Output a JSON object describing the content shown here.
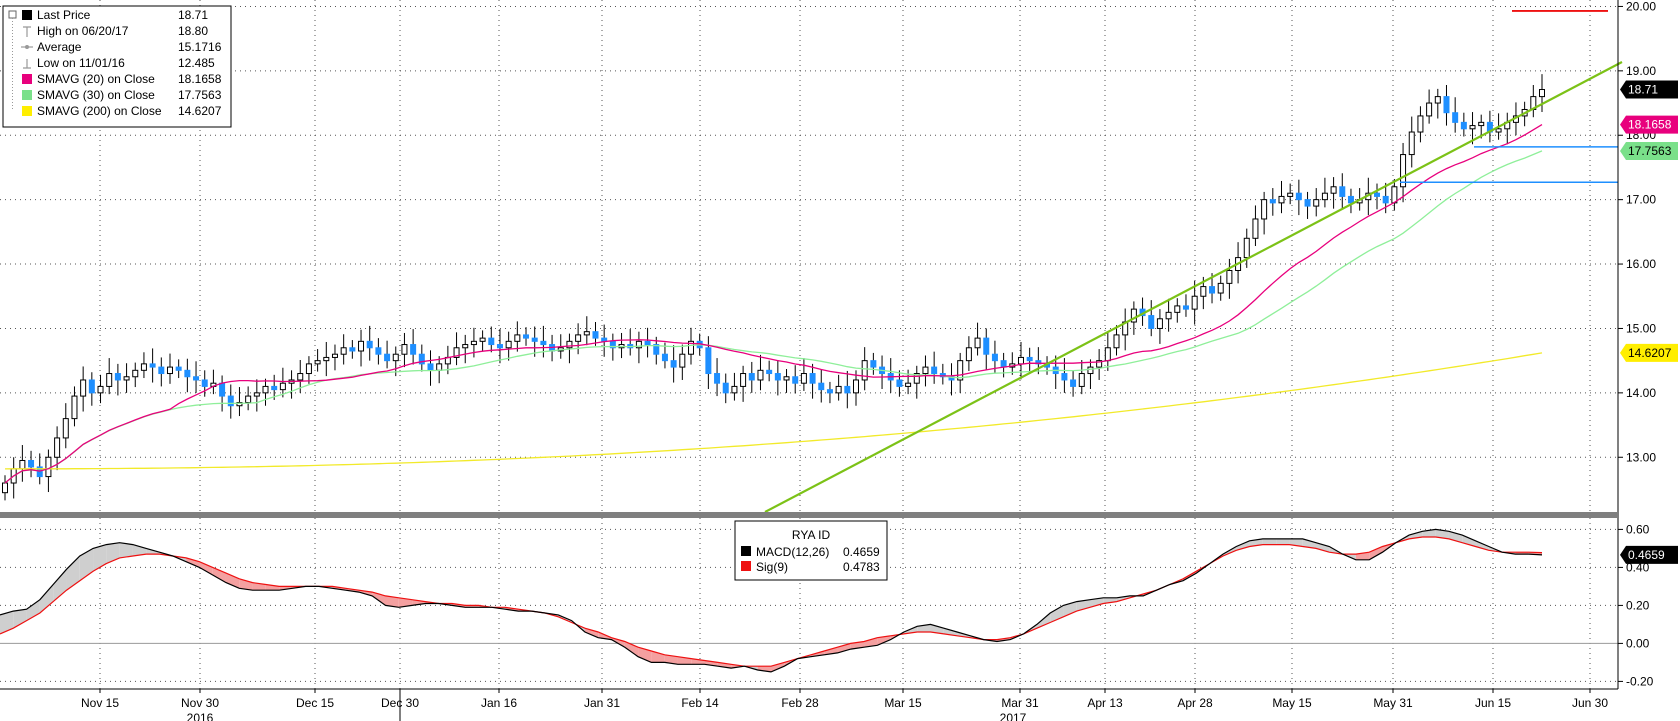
{
  "chart_data": [
    {
      "type": "candlestick",
      "panel": "price",
      "ylim": [
        12.15,
        20.1
      ],
      "yticks": [
        "20.00",
        "19.00",
        "18.00",
        "17.00",
        "16.00",
        "15.00",
        "14.00",
        "13.00"
      ],
      "legend": [
        {
          "label": "Last Price",
          "value": "18.71",
          "marker": "square",
          "color": "#000000"
        },
        {
          "label": "High on 06/20/17",
          "value": "18.80",
          "marker": "high",
          "color": "#999999"
        },
        {
          "label": "Average",
          "value": "15.1716",
          "marker": "avg",
          "color": "#999999"
        },
        {
          "label": "Low on 11/01/16",
          "value": "12.485",
          "marker": "low",
          "color": "#999999"
        },
        {
          "label": "SMAVG (20) on Close",
          "value": "18.1658",
          "marker": "square",
          "color": "#e8007d"
        },
        {
          "label": "SMAVG (30) on Close",
          "value": "17.7563",
          "marker": "square",
          "color": "#7ae08a"
        },
        {
          "label": "SMAVG (200) on Close",
          "value": "14.6207",
          "marker": "square",
          "color": "#ffee00"
        }
      ],
      "value_tags": [
        {
          "text": "18.71",
          "value": 18.71,
          "bg": "#000000",
          "fg": "#ffffff"
        },
        {
          "text": "18.1658",
          "value": 18.1658,
          "bg": "#e8007d",
          "fg": "#ffffff"
        },
        {
          "text": "17.7563",
          "value": 17.7563,
          "bg": "#7ae08a",
          "fg": "#000000"
        },
        {
          "text": "14.6207",
          "value": 14.6207,
          "bg": "#ffee00",
          "fg": "#000000"
        }
      ],
      "colors": {
        "up": "#000000",
        "down": "#1e8fff",
        "sma20": "#e8007d",
        "sma30": "#8fef9a",
        "sma200": "#f2ea2a",
        "trend": "#7cc217",
        "hline_red": "#ee1111",
        "hline_blue": "#1e8fff"
      },
      "closes": [
        12.6,
        12.82,
        12.95,
        12.85,
        12.7,
        13.0,
        13.3,
        13.6,
        13.95,
        14.2,
        14.0,
        14.1,
        14.3,
        14.2,
        14.25,
        14.35,
        14.45,
        14.4,
        14.3,
        14.4,
        14.35,
        14.25,
        14.2,
        14.1,
        14.15,
        13.95,
        13.8,
        13.85,
        13.95,
        14.0,
        14.1,
        14.05,
        14.15,
        14.2,
        14.3,
        14.45,
        14.5,
        14.55,
        14.6,
        14.7,
        14.65,
        14.8,
        14.7,
        14.6,
        14.5,
        14.6,
        14.75,
        14.6,
        14.45,
        14.35,
        14.45,
        14.55,
        14.7,
        14.75,
        14.8,
        14.85,
        14.75,
        14.7,
        14.8,
        14.9,
        14.85,
        14.8,
        14.75,
        14.65,
        14.7,
        14.8,
        14.9,
        14.95,
        14.85,
        14.8,
        14.7,
        14.75,
        14.7,
        14.8,
        14.75,
        14.6,
        14.5,
        14.4,
        14.6,
        14.8,
        14.7,
        14.3,
        14.15,
        14.0,
        14.1,
        14.3,
        14.2,
        14.35,
        14.3,
        14.2,
        14.25,
        14.15,
        14.3,
        14.15,
        14.05,
        14.0,
        14.1,
        14.0,
        14.2,
        14.5,
        14.4,
        14.3,
        14.2,
        14.1,
        14.15,
        14.3,
        14.4,
        14.3,
        14.25,
        14.2,
        14.5,
        14.7,
        14.85,
        14.6,
        14.5,
        14.4,
        14.45,
        14.55,
        14.5,
        14.45,
        14.4,
        14.3,
        14.2,
        14.1,
        14.3,
        14.4,
        14.5,
        14.7,
        14.9,
        15.1,
        15.3,
        15.2,
        15.0,
        15.15,
        15.25,
        15.35,
        15.3,
        15.5,
        15.65,
        15.55,
        15.7,
        15.9,
        16.1,
        16.4,
        16.7,
        17.0,
        16.95,
        17.05,
        17.1,
        17.0,
        16.9,
        17.0,
        17.1,
        17.2,
        17.05,
        16.95,
        17.0,
        17.1,
        17.05,
        16.95,
        17.2,
        17.7,
        18.05,
        18.3,
        18.5,
        18.6,
        18.35,
        18.2,
        18.1,
        18.15,
        18.2,
        18.05,
        18.1,
        18.2,
        18.3,
        18.4,
        18.6,
        18.71
      ],
      "sma20_end": 18.1658,
      "sma30_end": 17.7563,
      "sma200_end": 14.6207
    },
    {
      "type": "line",
      "panel": "macd",
      "title": "RYA ID",
      "ylim": [
        -0.24,
        0.66
      ],
      "yticks": [
        "0.60",
        "0.40",
        "0.20",
        "0.00",
        "-0.20"
      ],
      "series": [
        {
          "name": "MACD(12,26)",
          "value_text": "0.4659",
          "color": "#000000"
        },
        {
          "name": "Sig(9)",
          "value_text": "0.4783",
          "color": "#ee1111"
        }
      ],
      "value_tag": {
        "text": "0.4659",
        "value": 0.4659,
        "bg": "#000000",
        "fg": "#ffffff"
      },
      "fill_colors": {
        "macd_above": "#cfcfcf",
        "sig_above": "#f4a0a0"
      },
      "macd": [
        0.15,
        0.17,
        0.18,
        0.23,
        0.31,
        0.39,
        0.46,
        0.5,
        0.52,
        0.53,
        0.52,
        0.5,
        0.48,
        0.46,
        0.43,
        0.4,
        0.36,
        0.32,
        0.29,
        0.28,
        0.28,
        0.28,
        0.29,
        0.3,
        0.3,
        0.29,
        0.28,
        0.27,
        0.25,
        0.2,
        0.19,
        0.2,
        0.21,
        0.21,
        0.2,
        0.19,
        0.19,
        0.19,
        0.18,
        0.17,
        0.17,
        0.16,
        0.15,
        0.12,
        0.06,
        0.03,
        0.02,
        -0.02,
        -0.07,
        -0.1,
        -0.1,
        -0.11,
        -0.11,
        -0.11,
        -0.12,
        -0.13,
        -0.12,
        -0.14,
        -0.15,
        -0.12,
        -0.08,
        -0.07,
        -0.06,
        -0.05,
        -0.03,
        -0.02,
        -0.01,
        0.02,
        0.06,
        0.09,
        0.1,
        0.08,
        0.06,
        0.04,
        0.02,
        0.01,
        0.02,
        0.05,
        0.1,
        0.16,
        0.2,
        0.22,
        0.23,
        0.24,
        0.24,
        0.25,
        0.25,
        0.28,
        0.31,
        0.33,
        0.37,
        0.42,
        0.47,
        0.51,
        0.54,
        0.55,
        0.55,
        0.55,
        0.55,
        0.53,
        0.51,
        0.47,
        0.44,
        0.44,
        0.48,
        0.53,
        0.57,
        0.59,
        0.6,
        0.59,
        0.57,
        0.54,
        0.51,
        0.48,
        0.47,
        0.47,
        0.466
      ],
      "signal": [
        0.05,
        0.08,
        0.12,
        0.16,
        0.22,
        0.28,
        0.33,
        0.38,
        0.42,
        0.45,
        0.46,
        0.47,
        0.47,
        0.46,
        0.45,
        0.43,
        0.4,
        0.37,
        0.34,
        0.32,
        0.31,
        0.3,
        0.3,
        0.3,
        0.3,
        0.3,
        0.29,
        0.28,
        0.27,
        0.25,
        0.24,
        0.23,
        0.22,
        0.21,
        0.21,
        0.2,
        0.2,
        0.19,
        0.19,
        0.18,
        0.17,
        0.16,
        0.14,
        0.11,
        0.08,
        0.06,
        0.03,
        0.01,
        -0.02,
        -0.04,
        -0.06,
        -0.07,
        -0.08,
        -0.09,
        -0.1,
        -0.11,
        -0.12,
        -0.12,
        -0.12,
        -0.1,
        -0.08,
        -0.06,
        -0.04,
        -0.02,
        0.0,
        0.01,
        0.03,
        0.04,
        0.05,
        0.06,
        0.06,
        0.05,
        0.04,
        0.03,
        0.02,
        0.02,
        0.03,
        0.05,
        0.08,
        0.11,
        0.14,
        0.17,
        0.19,
        0.21,
        0.22,
        0.24,
        0.26,
        0.28,
        0.31,
        0.34,
        0.38,
        0.42,
        0.46,
        0.49,
        0.51,
        0.52,
        0.52,
        0.52,
        0.51,
        0.5,
        0.48,
        0.47,
        0.47,
        0.48,
        0.51,
        0.53,
        0.55,
        0.56,
        0.56,
        0.55,
        0.53,
        0.51,
        0.49,
        0.48,
        0.48,
        0.48,
        0.478
      ]
    }
  ],
  "x_axis": {
    "ticks": [
      "Nov 15",
      "Nov 30",
      "Dec 15",
      "Dec 30",
      "Jan 16",
      "Jan 31",
      "Feb 14",
      "Feb 28",
      "Mar 15",
      "Mar 31",
      "Apr 13",
      "Apr 28",
      "May 15",
      "May 31",
      "Jun 15",
      "Jun 30"
    ],
    "years": [
      "2016",
      "2017"
    ]
  }
}
